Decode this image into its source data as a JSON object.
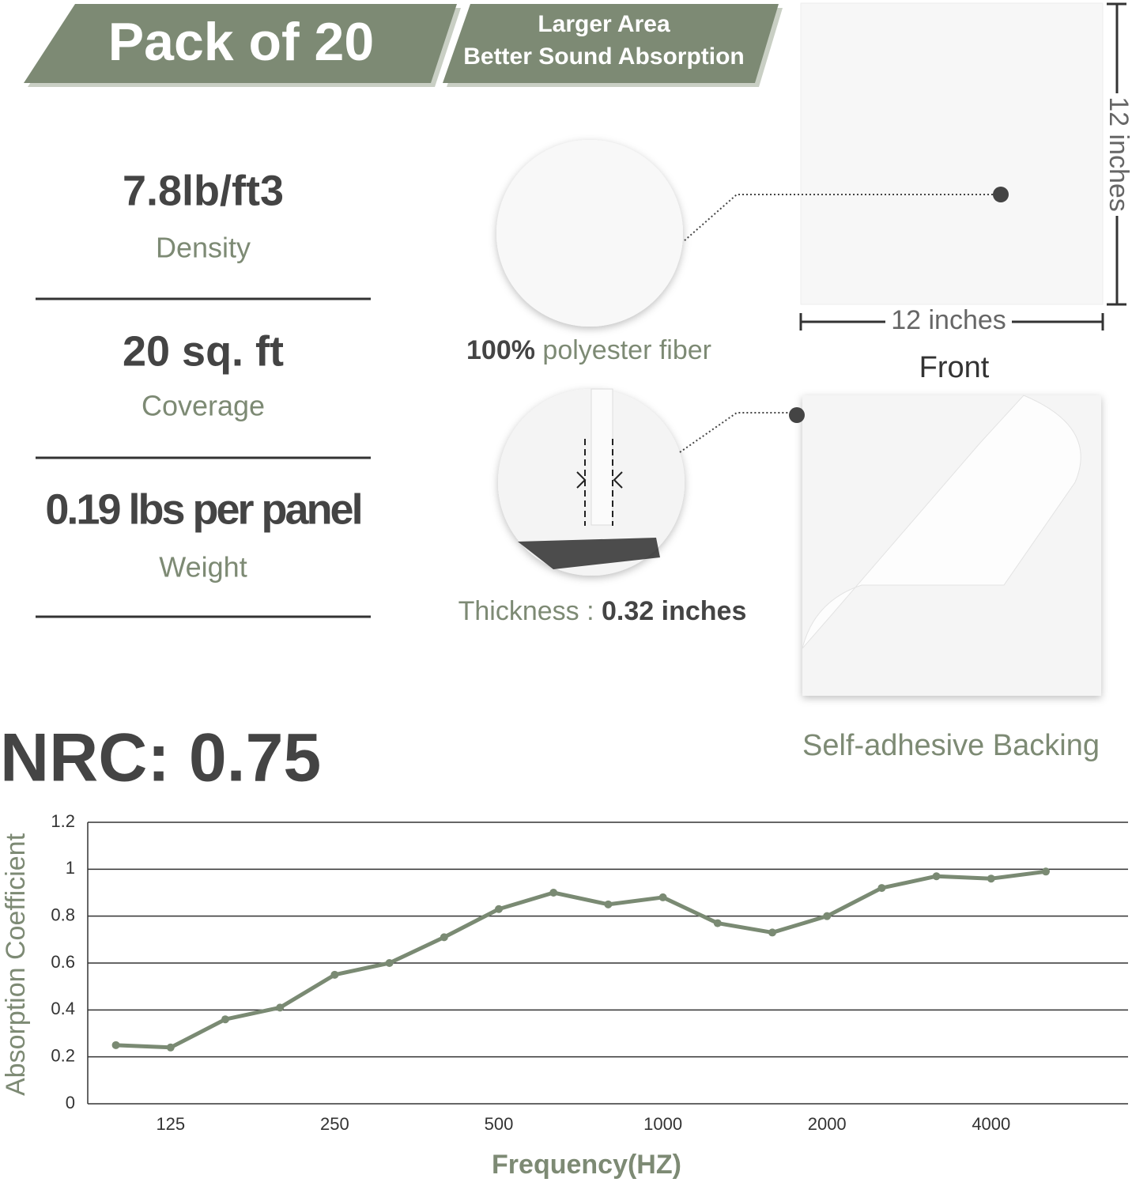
{
  "banner": {
    "pack": "Pack of 20",
    "line1": "Larger Area",
    "line2": "Better Sound Absorption"
  },
  "specs": [
    {
      "value": "7.8lb/ft3",
      "label": "Density"
    },
    {
      "value": "20 sq. ft",
      "label": "Coverage"
    },
    {
      "value": "0.19 lbs per panel",
      "label": "Weight"
    }
  ],
  "fiber": {
    "bold": "100%",
    "text": " polyester fiber"
  },
  "thickness": {
    "label": "Thickness : ",
    "value": "0.32 inches"
  },
  "dimensions": {
    "height": "12 inches",
    "width": "12 inches"
  },
  "front": "Front",
  "backing": "Self-adhesive Backing",
  "nrc": "NRC: 0.75",
  "chart_data": {
    "type": "line",
    "x_label": "Frequency(HZ)",
    "y_label": "Absorption Coefficient",
    "categories": [
      null,
      "125",
      null,
      null,
      "250",
      null,
      null,
      "500",
      null,
      null,
      "1000",
      null,
      null,
      "2000",
      null,
      null,
      "4000",
      null
    ],
    "series": [
      {
        "name": null,
        "color": "#7a8a73",
        "values": [
          0.25,
          0.24,
          0.36,
          0.41,
          0.55,
          0.6,
          0.71,
          0.83,
          0.9,
          0.85,
          0.88,
          0.77,
          0.73,
          0.8,
          0.92,
          0.97,
          0.96,
          0.99
        ]
      }
    ],
    "ylim": [
      0,
      1.2
    ],
    "yticks": [
      0,
      0.2,
      0.4,
      0.6,
      0.8,
      1,
      1.2
    ],
    "grid": true
  }
}
